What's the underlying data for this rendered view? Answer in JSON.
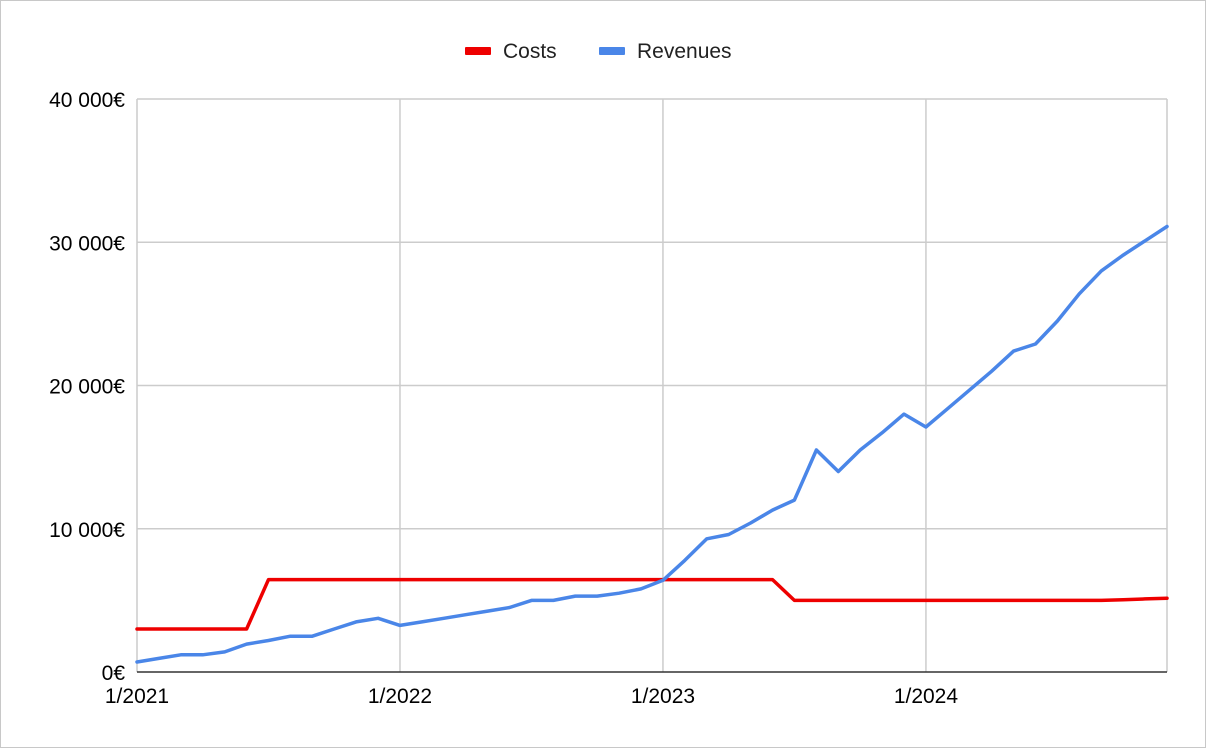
{
  "chart_data": {
    "type": "line",
    "title": "",
    "xlabel": "",
    "ylabel": "",
    "x": [
      "2021-01",
      "2021-02",
      "2021-03",
      "2021-04",
      "2021-05",
      "2021-06",
      "2021-07",
      "2021-08",
      "2021-09",
      "2021-10",
      "2021-11",
      "2021-12",
      "2022-01",
      "2022-02",
      "2022-03",
      "2022-04",
      "2022-05",
      "2022-06",
      "2022-07",
      "2022-08",
      "2022-09",
      "2022-10",
      "2022-11",
      "2022-12",
      "2023-01",
      "2023-02",
      "2023-03",
      "2023-04",
      "2023-05",
      "2023-06",
      "2023-07",
      "2023-08",
      "2023-09",
      "2023-10",
      "2023-11",
      "2023-12",
      "2024-01",
      "2024-02",
      "2024-03",
      "2024-04",
      "2024-05",
      "2024-06",
      "2024-07",
      "2024-08",
      "2024-09",
      "2024-10",
      "2024-11",
      "2024-12"
    ],
    "x_tick_labels": [
      "1/2021",
      "1/2022",
      "1/2023",
      "1/2024"
    ],
    "y_tick_labels": [
      "0€",
      "10 000€",
      "20 000€",
      "30 000€",
      "40 000€"
    ],
    "ylim": [
      0,
      40000
    ],
    "grid": true,
    "legend_position": "top-center",
    "series": [
      {
        "name": "Costs",
        "color": "#ee0000",
        "values": [
          3000,
          3000,
          3000,
          3000,
          3000,
          3000,
          6450,
          6450,
          6450,
          6450,
          6450,
          6450,
          6450,
          6450,
          6450,
          6450,
          6450,
          6450,
          6450,
          6450,
          6450,
          6450,
          6450,
          6450,
          6450,
          6450,
          6450,
          6450,
          6450,
          6450,
          5000,
          5000,
          5000,
          5000,
          5000,
          5000,
          5000,
          5000,
          5000,
          5000,
          5000,
          5000,
          5000,
          5000,
          5000,
          5050,
          5100,
          5150
        ]
      },
      {
        "name": "Revenues",
        "color": "#4a86e8",
        "values": [
          700,
          950,
          1200,
          1200,
          1400,
          1950,
          2200,
          2500,
          2500,
          3000,
          3500,
          3750,
          3250,
          3500,
          3750,
          4000,
          4250,
          4500,
          5000,
          5000,
          5300,
          5300,
          5500,
          5800,
          6400,
          7800,
          9300,
          9600,
          10400,
          11300,
          12000,
          15500,
          14000,
          15500,
          16700,
          18000,
          17100,
          18400,
          19700,
          21000,
          22400,
          22900,
          24500,
          26400,
          28000,
          29100,
          30100,
          31100
        ]
      }
    ]
  }
}
